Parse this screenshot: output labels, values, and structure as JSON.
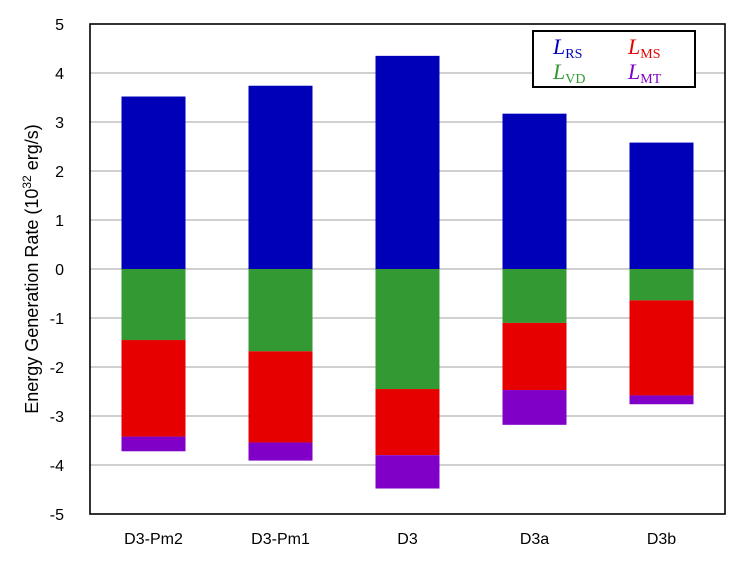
{
  "chart_data": {
    "type": "bar",
    "stacked": true,
    "categories": [
      "D3-Pm2",
      "D3-Pm1",
      "D3",
      "D3a",
      "D3b"
    ],
    "series": [
      {
        "key": "RS",
        "color": "#0000b8",
        "direction": "positive",
        "values": [
          3.52,
          3.74,
          4.35,
          3.17,
          2.58
        ]
      },
      {
        "key": "VD",
        "color": "#339933",
        "direction": "negative",
        "values": [
          -1.45,
          -1.68,
          -2.45,
          -1.1,
          -0.64
        ]
      },
      {
        "key": "MS",
        "color": "#e60000",
        "direction": "negative",
        "values": [
          -1.97,
          -1.86,
          -1.35,
          -1.37,
          -1.94
        ]
      },
      {
        "key": "MT",
        "color": "#8000c8",
        "direction": "negative",
        "values": [
          -0.3,
          -0.37,
          -0.68,
          -0.71,
          -0.18
        ]
      }
    ],
    "ylabel_text": "Energy Generation Rate (10",
    "ylabel_sup": "32",
    "ylabel_unit": " erg/s)",
    "ylim": [
      -5,
      5
    ],
    "yticks": [
      -5,
      -4,
      -3,
      -2,
      -1,
      0,
      1,
      2,
      3,
      4,
      5
    ],
    "grid": "horizontal",
    "legend": {
      "placement": "top-right",
      "entries": [
        {
          "main": "L",
          "sub": "RS",
          "color": "#0000b8"
        },
        {
          "main": "L",
          "sub": "MS",
          "color": "#e60000"
        },
        {
          "main": "L",
          "sub": "VD",
          "color": "#339933"
        },
        {
          "main": "L",
          "sub": "MT",
          "color": "#8000c8"
        }
      ]
    }
  }
}
